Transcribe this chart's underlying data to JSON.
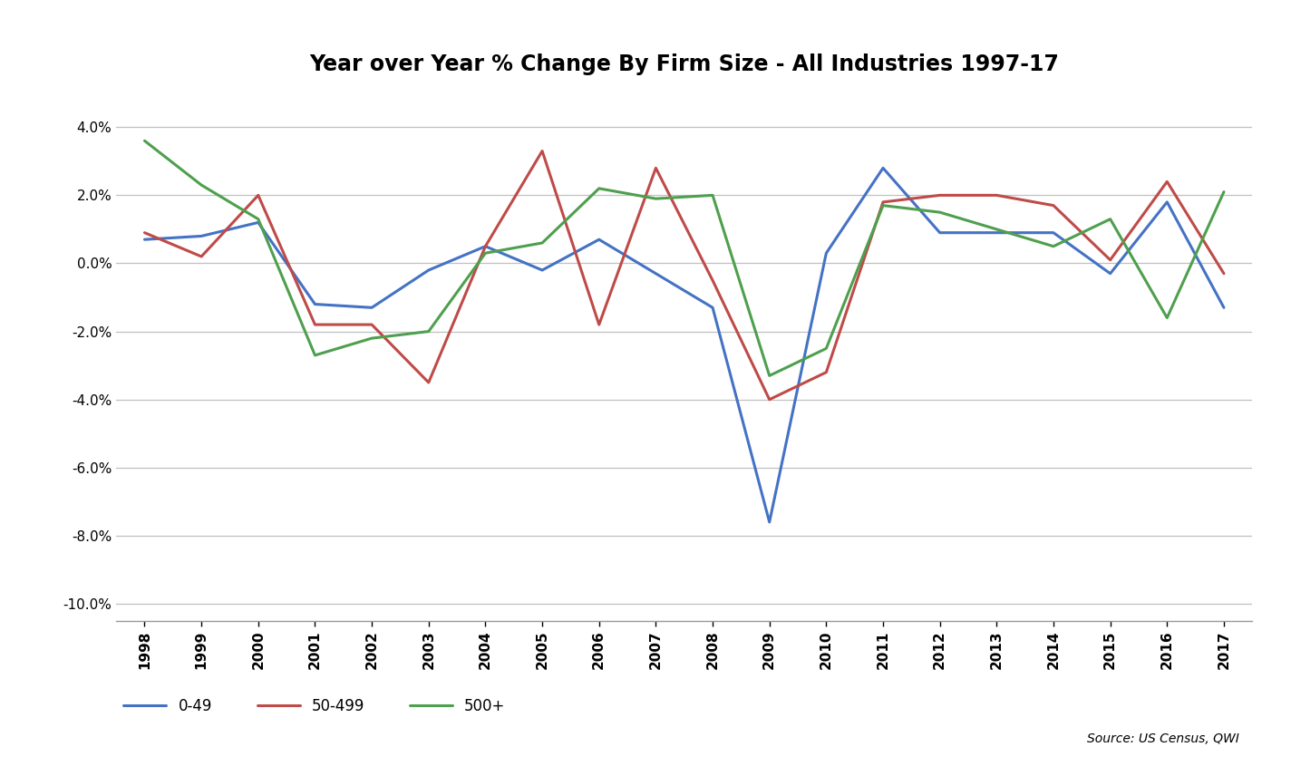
{
  "title": "Year over Year % Change By Firm Size - All Industries 1997-17",
  "years": [
    1998,
    1999,
    2000,
    2001,
    2002,
    2003,
    2004,
    2005,
    2006,
    2007,
    2008,
    2009,
    2010,
    2011,
    2012,
    2013,
    2014,
    2015,
    2016,
    2017
  ],
  "series": {
    "0-49": [
      0.007,
      0.008,
      0.012,
      -0.012,
      -0.013,
      -0.002,
      0.005,
      -0.002,
      0.007,
      -0.003,
      -0.013,
      -0.076,
      0.003,
      0.028,
      0.009,
      0.009,
      0.009,
      -0.003,
      0.018,
      -0.013
    ],
    "50-499": [
      0.009,
      0.002,
      0.02,
      -0.018,
      -0.018,
      -0.035,
      0.005,
      0.033,
      -0.018,
      0.028,
      -0.005,
      -0.04,
      -0.032,
      0.018,
      0.02,
      0.02,
      0.017,
      0.001,
      0.024,
      -0.003
    ],
    "500+": [
      0.036,
      0.023,
      0.013,
      -0.027,
      -0.022,
      -0.02,
      0.003,
      0.006,
      0.022,
      0.019,
      0.02,
      -0.033,
      -0.025,
      0.017,
      0.015,
      0.01,
      0.005,
      0.013,
      -0.016,
      0.021
    ]
  },
  "series_order": [
    "0-49",
    "50-499",
    "500+"
  ],
  "colors": {
    "0-49": "#4472C4",
    "50-499": "#BE4B48",
    "500+": "#4E9F4E"
  },
  "ylim": [
    -0.105,
    0.05
  ],
  "yticks": [
    0.04,
    0.02,
    0.0,
    -0.02,
    -0.04,
    -0.06,
    -0.08,
    -0.1
  ],
  "linewidth": 2.2,
  "source_text": "Source: US Census, QWI",
  "background_color": "#FFFFFF",
  "grid_color": "#C0C0C0",
  "title_fontsize": 17,
  "tick_fontsize": 11,
  "legend_fontsize": 12
}
